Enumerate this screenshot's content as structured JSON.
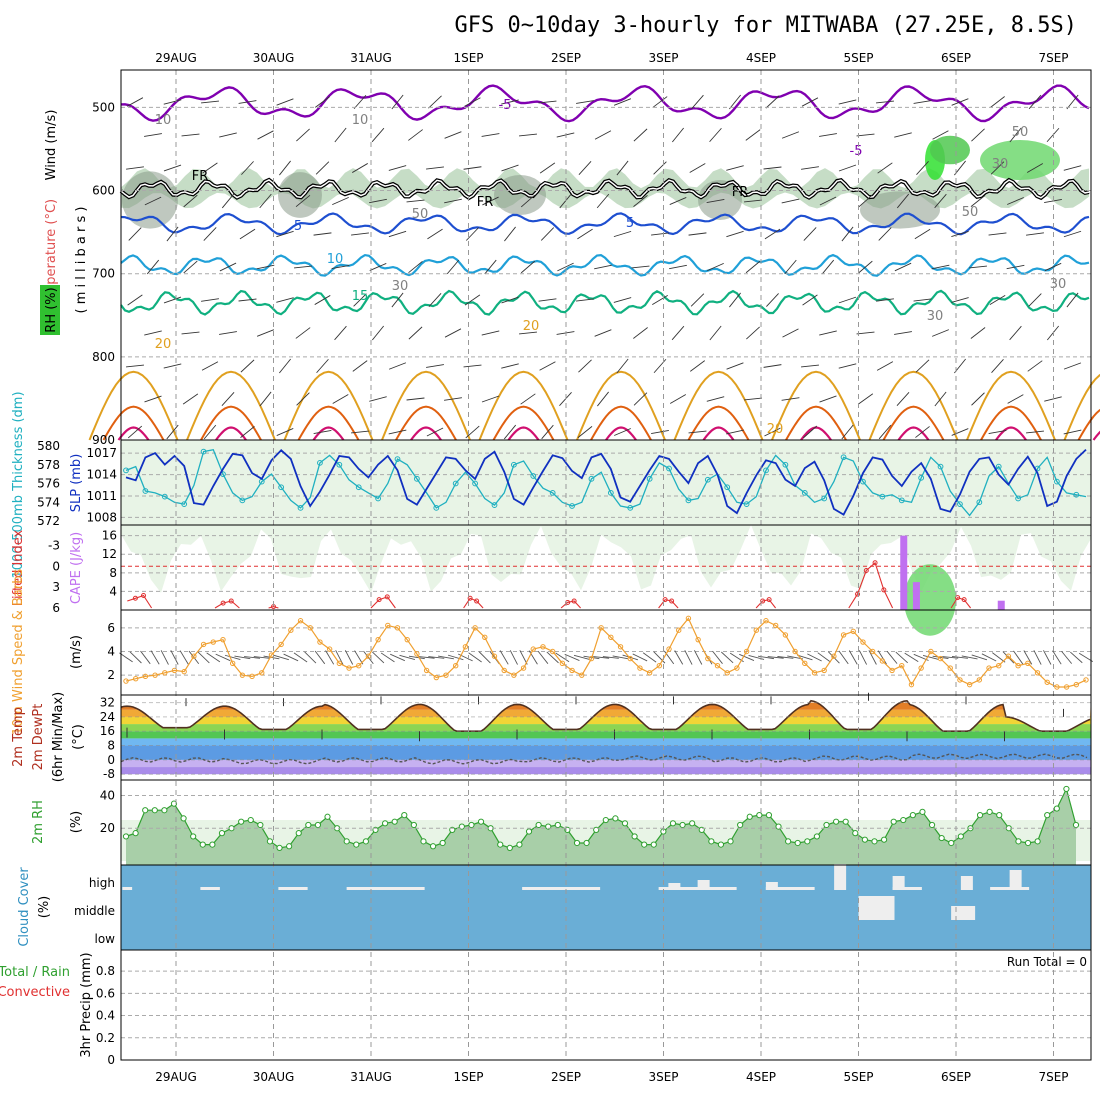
{
  "title": "GFS 0~10day 3-hourly for MITWABA (27.25E, 8.5S)",
  "dates": [
    "29AUG",
    "30AUG",
    "31AUG",
    "1SEP",
    "2SEP",
    "3SEP",
    "4SEP",
    "5SEP",
    "6SEP",
    "7SEP"
  ],
  "colors": {
    "purple": "#8000b0",
    "blue": "#1e4fd0",
    "cyan": "#20a0d8",
    "green": "#10b080",
    "orange": "#e0a020",
    "darkorange": "#e06010",
    "magenta": "#d01070",
    "slp": "#1030c0",
    "thick": "#20b0c0",
    "li": "#e03030",
    "cape": "#c070f0",
    "wind": "#f0a030",
    "cloud": "#6aaed6",
    "rh": "#30a030"
  },
  "chart_data": [
    {
      "type": "line",
      "panel": "upper-air",
      "ylabels": [
        "Wind (m/s)",
        "Temperature (°C)",
        "RH (%)",
        "( m i l l i b a r s )"
      ],
      "yticks": [
        500,
        600,
        700,
        800,
        900
      ],
      "ylim": [
        900,
        455
      ],
      "contour_labels": [
        "-5",
        "-5",
        "5",
        "5",
        "10",
        "15",
        "20",
        "20",
        "20",
        "FR",
        "FR",
        "FR",
        "10",
        "10",
        "50",
        "50",
        "50",
        "30",
        "30",
        "30",
        "30"
      ],
      "isotherm_levels_mb": {
        "minus5": 495,
        "zero_FR": 598,
        "plus5": 640,
        "plus10": 690,
        "plus15": 735
      }
    },
    {
      "type": "line",
      "panel": "thickness-slp",
      "ylabels": [
        "1000-500mb Thickness (dm)",
        "SLP (mb)"
      ],
      "yticks_left": [
        572,
        574,
        576,
        578,
        580
      ],
      "yticks_right": [
        1008,
        1011,
        1014,
        1017
      ],
      "series": [
        {
          "name": "SLP",
          "values": [
            1013.6,
            1013.2,
            1016.4,
            1017.0,
            1015.4,
            1016.6,
            1015.2,
            1010.0,
            1009.8,
            1012.4,
            1014.8,
            1016.9,
            1016.7,
            1014.2,
            1013.4,
            1016.0,
            1017.4,
            1016.2,
            1012.4,
            1009.6,
            1011.6,
            1014.0,
            1016.6,
            1016.4,
            1014.8,
            1013.6,
            1015.4,
            1016.6,
            1014.6,
            1010.6,
            1009.8,
            1012.0,
            1014.2,
            1016.4,
            1016.2,
            1014.6,
            1013.4,
            1016.2,
            1017.2,
            1014.4,
            1010.6,
            1009.8,
            1012.2,
            1014.5,
            1016.7,
            1016.3,
            1014.5,
            1013.5,
            1016.4,
            1016.9,
            1014.8,
            1010.8,
            1010.2,
            1012.4,
            1014.6,
            1016.6,
            1016.2,
            1014.4,
            1012.8,
            1015.6,
            1016.6,
            1014.0,
            1009.6,
            1008.6,
            1011.4,
            1013.9,
            1016.0,
            1015.6,
            1013.3,
            1012.4,
            1014.9,
            1015.8,
            1013.2,
            1009.2,
            1008.4,
            1011.0,
            1014.2,
            1016.4,
            1016.1,
            1013.8,
            1012.4,
            1014.4,
            1015.6,
            1013.4,
            1009.2,
            1008.8,
            1011.2,
            1014.4,
            1016.2,
            1016.4,
            1014.0,
            1012.6,
            1014.8,
            1016.5,
            1014.2,
            1009.6,
            1010.2,
            1013.8,
            1016.2,
            1017.5
          ]
        },
        {
          "name": "Thickness",
          "values": [
            577.4,
            577.8,
            575.2,
            575.0,
            574.6,
            574.0,
            573.8,
            575.8,
            579.4,
            579.6,
            577.0,
            575.0,
            574.2,
            574.6,
            576.2,
            577.0,
            575.6,
            574.2,
            573.4,
            574.5,
            578.2,
            579.0,
            578.0,
            576.4,
            575.6,
            575.0,
            574.4,
            576.0,
            578.6,
            578.0,
            576.5,
            575.0,
            573.4,
            574.0,
            576.0,
            577.2,
            576.0,
            574.4,
            573.7,
            575.0,
            578.0,
            578.4,
            576.8,
            575.5,
            575.0,
            574.0,
            573.6,
            574.0,
            576.5,
            577.2,
            575.0,
            573.6,
            573.4,
            573.8,
            576.5,
            578.2,
            577.6,
            575.4,
            574.2,
            574.4,
            576.4,
            577.0,
            575.6,
            574.0,
            573.8,
            574.6,
            577.4,
            579.0,
            578.0,
            575.8,
            575.0,
            574.0,
            574.4,
            576.2,
            578.8,
            578.4,
            576.2,
            575.0,
            574.6,
            574.8,
            574.2,
            574.0,
            576.6,
            578.8,
            577.8,
            575.2,
            573.8,
            572.6,
            574.0,
            576.8,
            577.8,
            576.0,
            574.4,
            574.8,
            577.6,
            578.8,
            576.2,
            575.0,
            574.8,
            574.6
          ]
        }
      ]
    },
    {
      "type": "bar",
      "panel": "lifted-index-cape",
      "ylabels": [
        "Lifted Index",
        "CAPE (J/kg)"
      ],
      "yticks_left": [
        -3,
        0,
        3,
        6
      ],
      "yticks_right": [
        4,
        8,
        12,
        16
      ],
      "cape_values_jkg": [
        {
          "day": 7.5,
          "value": 16
        },
        {
          "day": 7.63,
          "value": 6
        },
        {
          "day": 8.5,
          "value": 2
        }
      ],
      "li_segments": [
        {
          "start": 0.0,
          "end": 0.25,
          "values": [
            5.0,
            4.6,
            4.2,
            6.0
          ]
        },
        {
          "start": 0.9,
          "end": 1.15,
          "values": [
            6.0,
            5.3,
            5.0,
            6.0
          ]
        },
        {
          "start": 1.45,
          "end": 1.55,
          "values": [
            6.0,
            5.8,
            6.0
          ]
        },
        {
          "start": 2.5,
          "end": 2.75,
          "values": [
            6.0,
            4.8,
            4.4,
            6.0
          ]
        },
        {
          "start": 3.45,
          "end": 3.65,
          "values": [
            6.0,
            4.6,
            5.0,
            6.0
          ]
        },
        {
          "start": 4.45,
          "end": 4.65,
          "values": [
            6.0,
            5.2,
            5.0,
            6.0
          ]
        },
        {
          "start": 5.45,
          "end": 5.65,
          "values": [
            6.0,
            4.8,
            5.0,
            6.0
          ]
        },
        {
          "start": 6.45,
          "end": 6.65,
          "values": [
            6.0,
            5.0,
            4.8,
            6.0
          ]
        },
        {
          "start": 7.4,
          "end": 7.85,
          "values": [
            6.0,
            4.0,
            0.6,
            -0.5,
            3.4,
            6.0
          ]
        },
        {
          "start": 8.45,
          "end": 8.65,
          "values": [
            6.0,
            4.5,
            4.8,
            6.0
          ]
        }
      ],
      "li_reference_line": 0
    },
    {
      "type": "line",
      "panel": "wind-speed",
      "ylabels": [
        "10m Wind Speed & Barbs",
        "(m/s)"
      ],
      "yticks": [
        2,
        4,
        6
      ],
      "series": [
        {
          "name": "speed",
          "values": [
            1.5,
            1.7,
            1.9,
            2.0,
            2.2,
            2.4,
            2.3,
            3.6,
            4.6,
            4.8,
            5.0,
            3.0,
            2.0,
            1.9,
            2.2,
            3.7,
            4.6,
            5.8,
            6.6,
            6.0,
            4.8,
            4.2,
            3.0,
            2.6,
            2.8,
            3.6,
            5.0,
            6.2,
            6.0,
            5.0,
            3.8,
            2.4,
            1.8,
            2.0,
            2.8,
            4.4,
            6.0,
            5.2,
            3.6,
            2.4,
            2.0,
            2.6,
            4.2,
            4.4,
            4.0,
            3.0,
            2.4,
            2.0,
            3.4,
            6.0,
            5.2,
            4.4,
            3.4,
            2.6,
            2.2,
            2.8,
            4.2,
            5.8,
            6.8,
            5.0,
            3.4,
            2.8,
            2.2,
            2.6,
            4.0,
            5.8,
            6.6,
            6.2,
            5.4,
            4.0,
            3.0,
            2.2,
            2.4,
            3.6,
            5.4,
            5.7,
            4.8,
            4.0,
            3.2,
            2.4,
            2.8,
            1.2,
            2.6,
            4.0,
            3.4,
            2.6,
            1.6,
            1.2,
            1.6,
            2.6,
            2.8,
            3.6,
            2.8,
            3.0,
            2.2,
            1.4,
            1.0,
            1.0,
            1.2,
            1.6
          ]
        }
      ]
    },
    {
      "type": "line",
      "panel": "temperature",
      "ylabels": [
        "2m Temp",
        "2m DewPt",
        "(6hr Min/Max)",
        "(°C)"
      ],
      "yticks": [
        -8,
        0,
        8,
        16,
        24,
        32
      ],
      "temp_max_per_day": [
        30,
        30,
        31,
        31,
        31,
        31,
        31,
        33,
        31,
        24
      ],
      "temp_min_per_day": [
        18,
        17,
        17,
        16,
        17,
        17,
        17,
        17,
        16,
        16
      ],
      "dewpoint_approx": [
        0,
        -1,
        0,
        -1,
        0,
        1,
        0,
        1,
        2,
        2
      ],
      "color_bands_c": [
        -8,
        -4,
        0,
        8,
        12,
        16,
        20,
        24,
        28,
        32
      ]
    },
    {
      "type": "area",
      "panel": "rh",
      "ylabels": [
        "2m RH",
        "(%)"
      ],
      "yticks": [
        20,
        40
      ],
      "series": [
        {
          "name": "RH",
          "values": [
            15,
            17,
            31,
            31,
            31,
            35,
            26,
            15,
            10,
            10,
            17,
            20,
            24,
            25,
            22,
            12,
            8,
            9,
            17,
            22,
            22,
            27,
            20,
            12,
            10,
            12,
            19,
            23,
            24,
            28,
            22,
            12,
            9,
            11,
            19,
            21,
            22,
            24,
            20,
            10,
            8,
            10,
            18,
            22,
            21,
            22,
            19,
            11,
            11,
            19,
            25,
            26,
            23,
            15,
            10,
            10,
            18,
            23,
            22,
            23,
            19,
            12,
            10,
            12,
            22,
            27,
            28,
            28,
            21,
            12,
            11,
            12,
            15,
            22,
            24,
            24,
            17,
            13,
            12,
            13,
            24,
            25,
            28,
            30,
            22,
            14,
            11,
            15,
            20,
            28,
            30,
            28,
            20,
            12,
            11,
            12,
            28,
            32,
            44,
            22
          ]
        }
      ]
    },
    {
      "type": "bar",
      "panel": "cloud-cover",
      "ylabels": [
        "Cloud Cover",
        "(%)"
      ],
      "level_labels": [
        "high",
        "middle",
        "low"
      ],
      "clear_high_runs_days": [
        [
          0.0,
          0.1
        ],
        [
          0.8,
          1.0
        ],
        [
          1.6,
          1.9
        ],
        [
          2.3,
          3.1
        ],
        [
          4.1,
          4.9
        ],
        [
          5.5,
          6.0
        ],
        [
          6.0,
          6.3
        ],
        [
          6.6,
          7.1
        ],
        [
          7.9,
          8.2
        ],
        [
          8.9,
          9.3
        ]
      ]
    },
    {
      "type": "line",
      "panel": "precip",
      "ylabels": [
        "Total / Rain",
        "Convective",
        "3hr Precip (mm)"
      ],
      "yticks": [
        0,
        0.2,
        0.4,
        0.6,
        0.8
      ],
      "run_total_text": "Run Total = 0",
      "values": []
    }
  ]
}
